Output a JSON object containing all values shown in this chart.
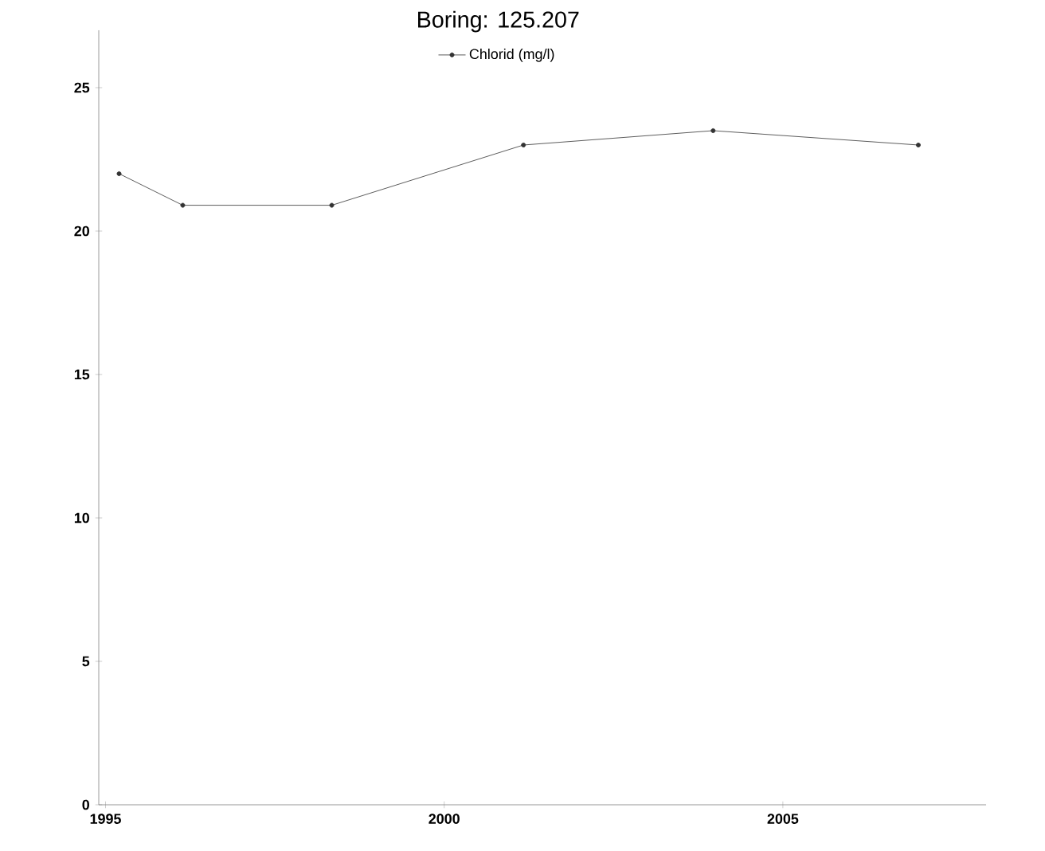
{
  "chart_data": {
    "type": "line",
    "title": "Boring: 125.207",
    "series": [
      {
        "name": "Chlorid (mg/l)",
        "color": "#333333",
        "x": [
          1995.2,
          1996.14,
          1998.34,
          2001.17,
          2003.97,
          2007.0
        ],
        "values": [
          22.0,
          20.9,
          20.9,
          23.0,
          23.5,
          23.0
        ]
      }
    ],
    "xlim": [
      1994.9,
      2008
    ],
    "xticks": [
      1995,
      2000,
      2005
    ],
    "ylim": [
      0,
      27
    ],
    "yticks": [
      0,
      5,
      10,
      15,
      20,
      25
    ],
    "grid": false,
    "legend": "top",
    "marker": "circle",
    "line_style": "solid"
  }
}
